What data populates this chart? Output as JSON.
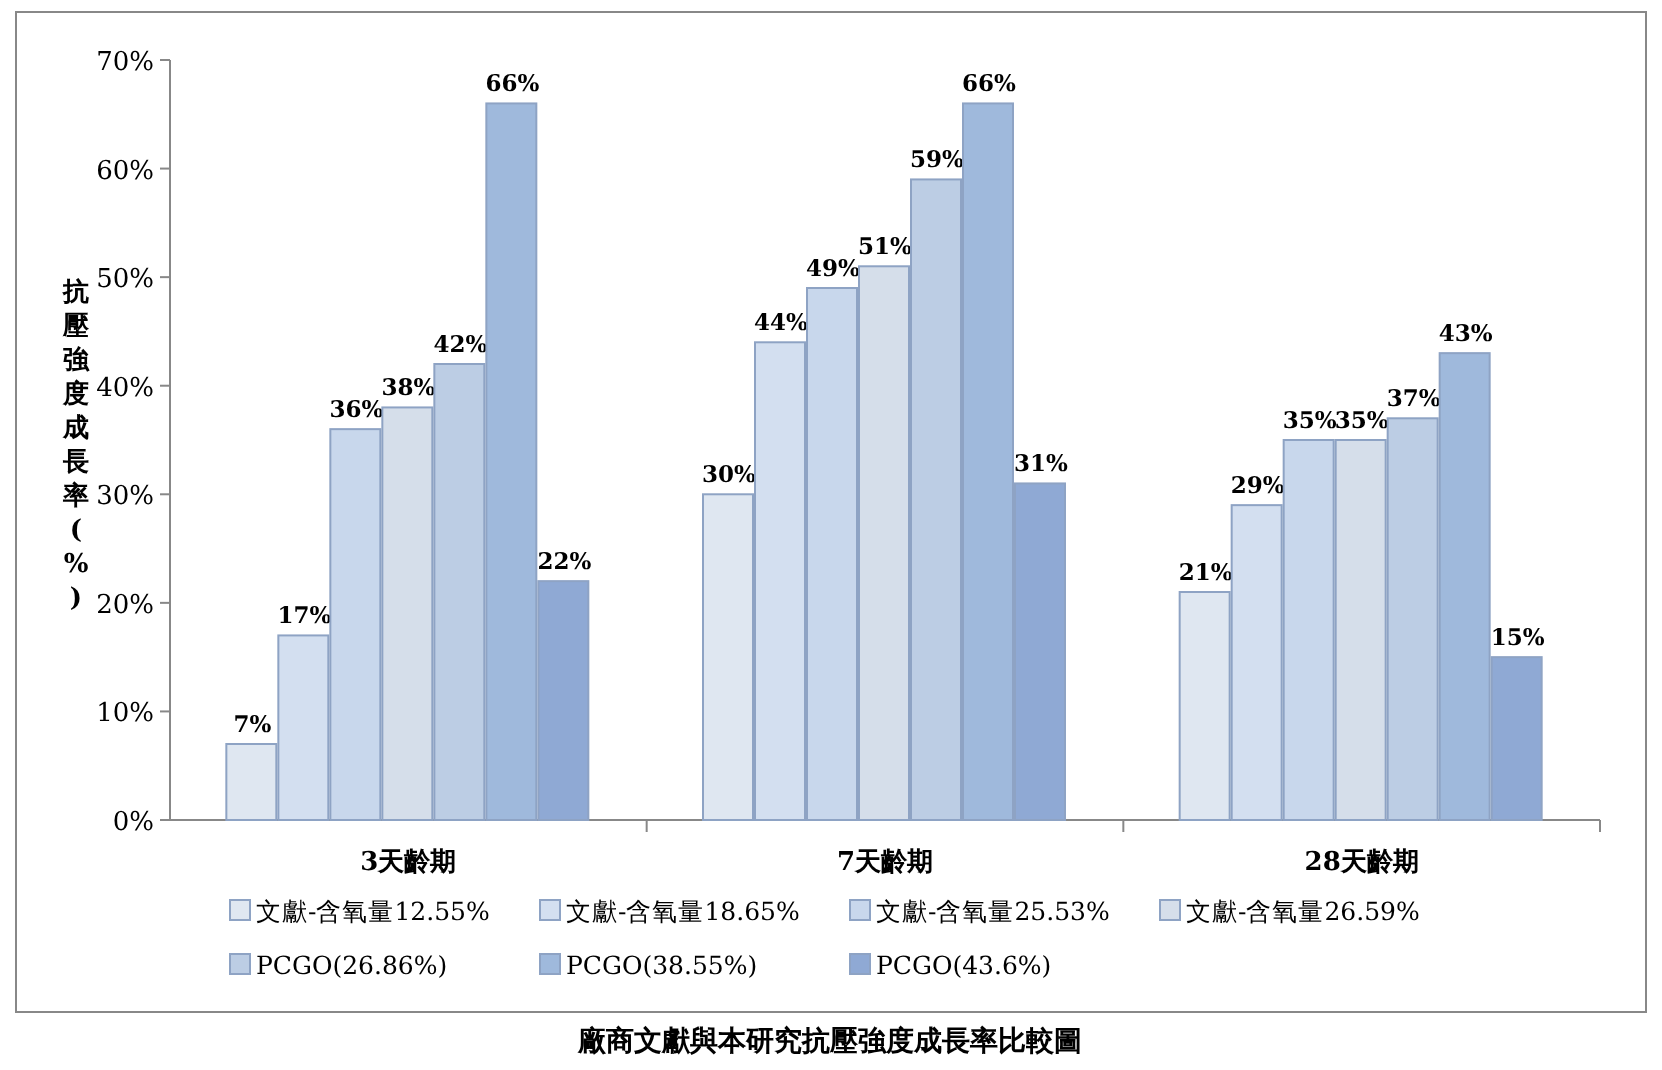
{
  "chart_data": {
    "type": "bar",
    "title": "廠商文獻與本研究抗壓強度成長率比較圖",
    "ylabel": "抗壓強度成長率(%)",
    "categories": [
      "3天齡期",
      "7天齡期",
      "28天齡期"
    ],
    "series": [
      {
        "name": "文獻-含氧量12.55%",
        "color": "#dfe7f1",
        "values": [
          7,
          30,
          21
        ],
        "value_labels": [
          "7%",
          "30%",
          "21%"
        ]
      },
      {
        "name": "文獻-含氧量18.65%",
        "color": "#d3dff0",
        "values": [
          17,
          44,
          29
        ],
        "value_labels": [
          "17%",
          "44%",
          "29%"
        ]
      },
      {
        "name": "文獻-含氧量25.53%",
        "color": "#c8d7ec",
        "values": [
          36,
          49,
          35
        ],
        "value_labels": [
          "36%",
          "49%",
          "35%"
        ]
      },
      {
        "name": "文獻-含氧量26.59%",
        "color": "#d5deea",
        "values": [
          38,
          51,
          35
        ],
        "value_labels": [
          "38%",
          "51%",
          "35%"
        ]
      },
      {
        "name": "PCGO(26.86%)",
        "color": "#bccde4",
        "values": [
          42,
          59,
          37
        ],
        "value_labels": [
          "42%",
          "59%",
          "37%"
        ]
      },
      {
        "name": "PCGO(38.55%)",
        "color": "#9fb9dc",
        "values": [
          66,
          66,
          43
        ],
        "value_labels": [
          "66%",
          "66%",
          "43%"
        ]
      },
      {
        "name": "PCGO(43.6%)",
        "color": "#8fa9d4",
        "values": [
          22,
          31,
          15
        ],
        "value_labels": [
          "22%",
          "31%",
          "15%"
        ]
      }
    ],
    "ylim": [
      0,
      70
    ],
    "yticks": [
      {
        "value": 0,
        "label": "0%"
      },
      {
        "value": 10,
        "label": "10%"
      },
      {
        "value": 20,
        "label": "20%"
      },
      {
        "value": 30,
        "label": "30%"
      },
      {
        "value": 40,
        "label": "40%"
      },
      {
        "value": 50,
        "label": "50%"
      },
      {
        "value": 60,
        "label": "60%"
      },
      {
        "value": 70,
        "label": "70%"
      }
    ],
    "grid": false,
    "legend": "bottom"
  }
}
